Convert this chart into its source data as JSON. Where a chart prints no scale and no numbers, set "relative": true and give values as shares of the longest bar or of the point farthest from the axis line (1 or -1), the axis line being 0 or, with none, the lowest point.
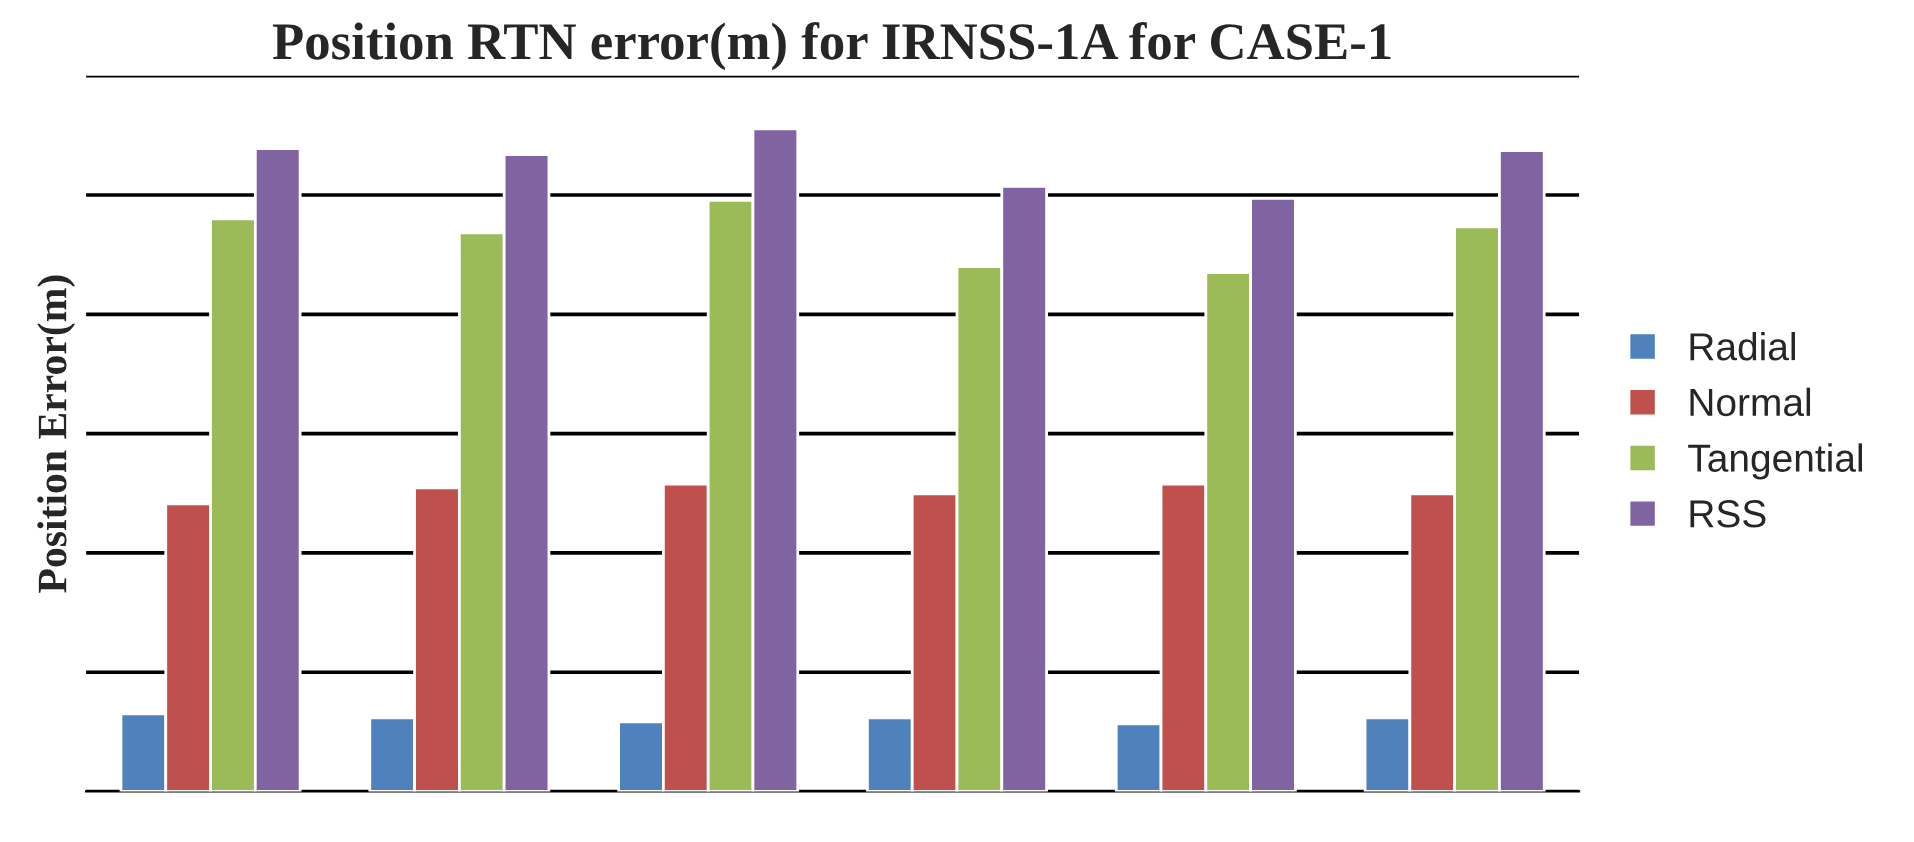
{
  "chart_data": {
    "type": "bar",
    "title": "Position RTN error(m) for IRNSS-1A for CASE-1",
    "ylabel": "Position Error(m)",
    "relative": true,
    "categories": [
      null,
      null,
      null,
      null,
      null,
      null
    ],
    "series": [
      {
        "name": "Radial",
        "color": "#4f81bd",
        "values": [
          0.117,
          0.111,
          0.105,
          0.111,
          0.102,
          0.111
        ]
      },
      {
        "name": "Normal",
        "color": "#c0504d",
        "values": [
          0.434,
          0.458,
          0.464,
          0.449,
          0.464,
          0.449
        ]
      },
      {
        "name": "Tangential",
        "color": "#9bbb59",
        "values": [
          0.864,
          0.843,
          0.892,
          0.792,
          0.783,
          0.852
        ]
      },
      {
        "name": "RSS",
        "color": "#8064a2",
        "values": [
          0.97,
          0.961,
          1,
          0.913,
          0.895,
          0.967
        ]
      }
    ],
    "grid": "y",
    "legend": "right"
  }
}
